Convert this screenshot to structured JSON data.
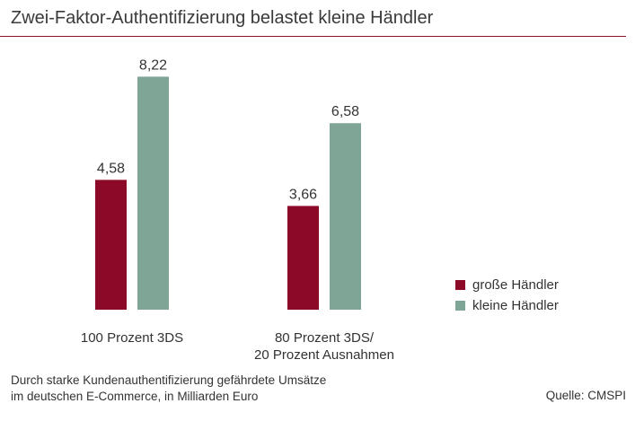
{
  "title": "Zwei-Faktor-Authentifizierung belastet kleine Händler",
  "footnote": {
    "line1": "Durch starke Kundenauthentifizierung gefährdete Umsätze",
    "line2": "im deutschen E-Commerce, in Milliarden Euro"
  },
  "source": "Quelle: CMSPI",
  "colors": {
    "accent_rule": "#8c1328",
    "series_large": "#8c0a28",
    "series_small": "#7fa596"
  },
  "chart_data": {
    "type": "bar",
    "categories": [
      [
        "100 Prozent 3DS"
      ],
      [
        "80 Prozent 3DS/",
        "20 Prozent Ausnahmen"
      ]
    ],
    "series": [
      {
        "name": "große Händler",
        "values": [
          4.58,
          3.66
        ],
        "labels": [
          "4,58",
          "3,66"
        ],
        "color": "#8c0a28"
      },
      {
        "name": "kleine Händler",
        "values": [
          8.22,
          6.58
        ],
        "labels": [
          "8,22",
          "6,58"
        ],
        "color": "#7fa596"
      }
    ],
    "ylim": [
      0,
      9.5
    ],
    "grid": false,
    "legend": "right"
  }
}
